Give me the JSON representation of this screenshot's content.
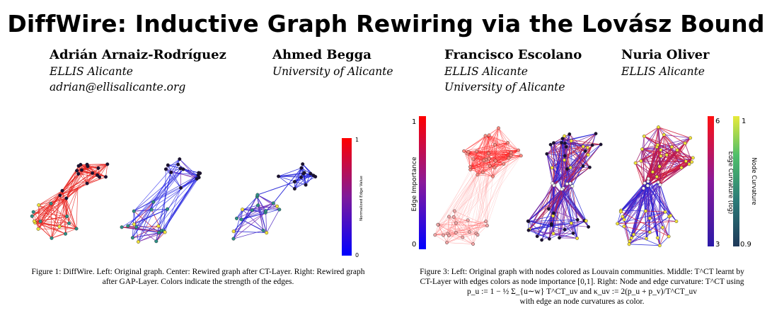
{
  "title": "DiffWire: Inductive Graph Rewiring via the Lovász Bound",
  "authors": [
    {
      "name": "Adrián Arnaiz-Rodríguez",
      "affiliations": [
        "ELLIS Alicante",
        "adrian@ellisalicante.org"
      ]
    },
    {
      "name": "Ahmed Begga",
      "affiliations": [
        "University of Alicante"
      ]
    },
    {
      "name": "Francisco Escolano",
      "affiliations": [
        "ELLIS Alicante",
        "University of Alicante"
      ]
    },
    {
      "name": "Nuria Oliver",
      "affiliations": [
        "ELLIS Alicante"
      ]
    }
  ],
  "figure1": {
    "colorbar_label": "Normalized Edge Value",
    "colorbar_max": "1",
    "colorbar_min": "0",
    "caption_lines": [
      "Figure 1: DiffWire. Left: Original graph. Center: Rewired graph after CT-Layer. Right: Rewired graph",
      "after GAP-Layer. Colors indicate the strength of the edges."
    ]
  },
  "figure3": {
    "left_bar_label": "Edge Importance",
    "left_bar_max": "1",
    "left_bar_min": "0",
    "curv_bar_label": "Edge Curvature (log)",
    "curv_bar_max": "6",
    "curv_bar_min": "3",
    "node_bar_label": "Node Curvature",
    "node_bar_max": "1",
    "node_bar_min": "0.9",
    "caption_lines": [
      "Figure 3: Left: Original graph with nodes colored as Louvain communities. Middle: T^CT learnt by",
      "CT-Layer with edges colors as node importance [0,1]. Right: Node and edge curvature: T^CT using",
      "p_u := 1 − ½ Σ_{u∼w} T^CT_uv and κ_uv := 2(p_u + p_v)/T^CT_uv",
      "with edge an node curvatures as color."
    ]
  },
  "colors": {
    "red": "#e8231f",
    "blue": "#1f1fd6",
    "purple": "#7a2db0",
    "node_dark": "#1a1033",
    "node_yellow": "#f3e33b",
    "node_teal": "#2e8f86",
    "node_pink": "#f2a6a6"
  }
}
